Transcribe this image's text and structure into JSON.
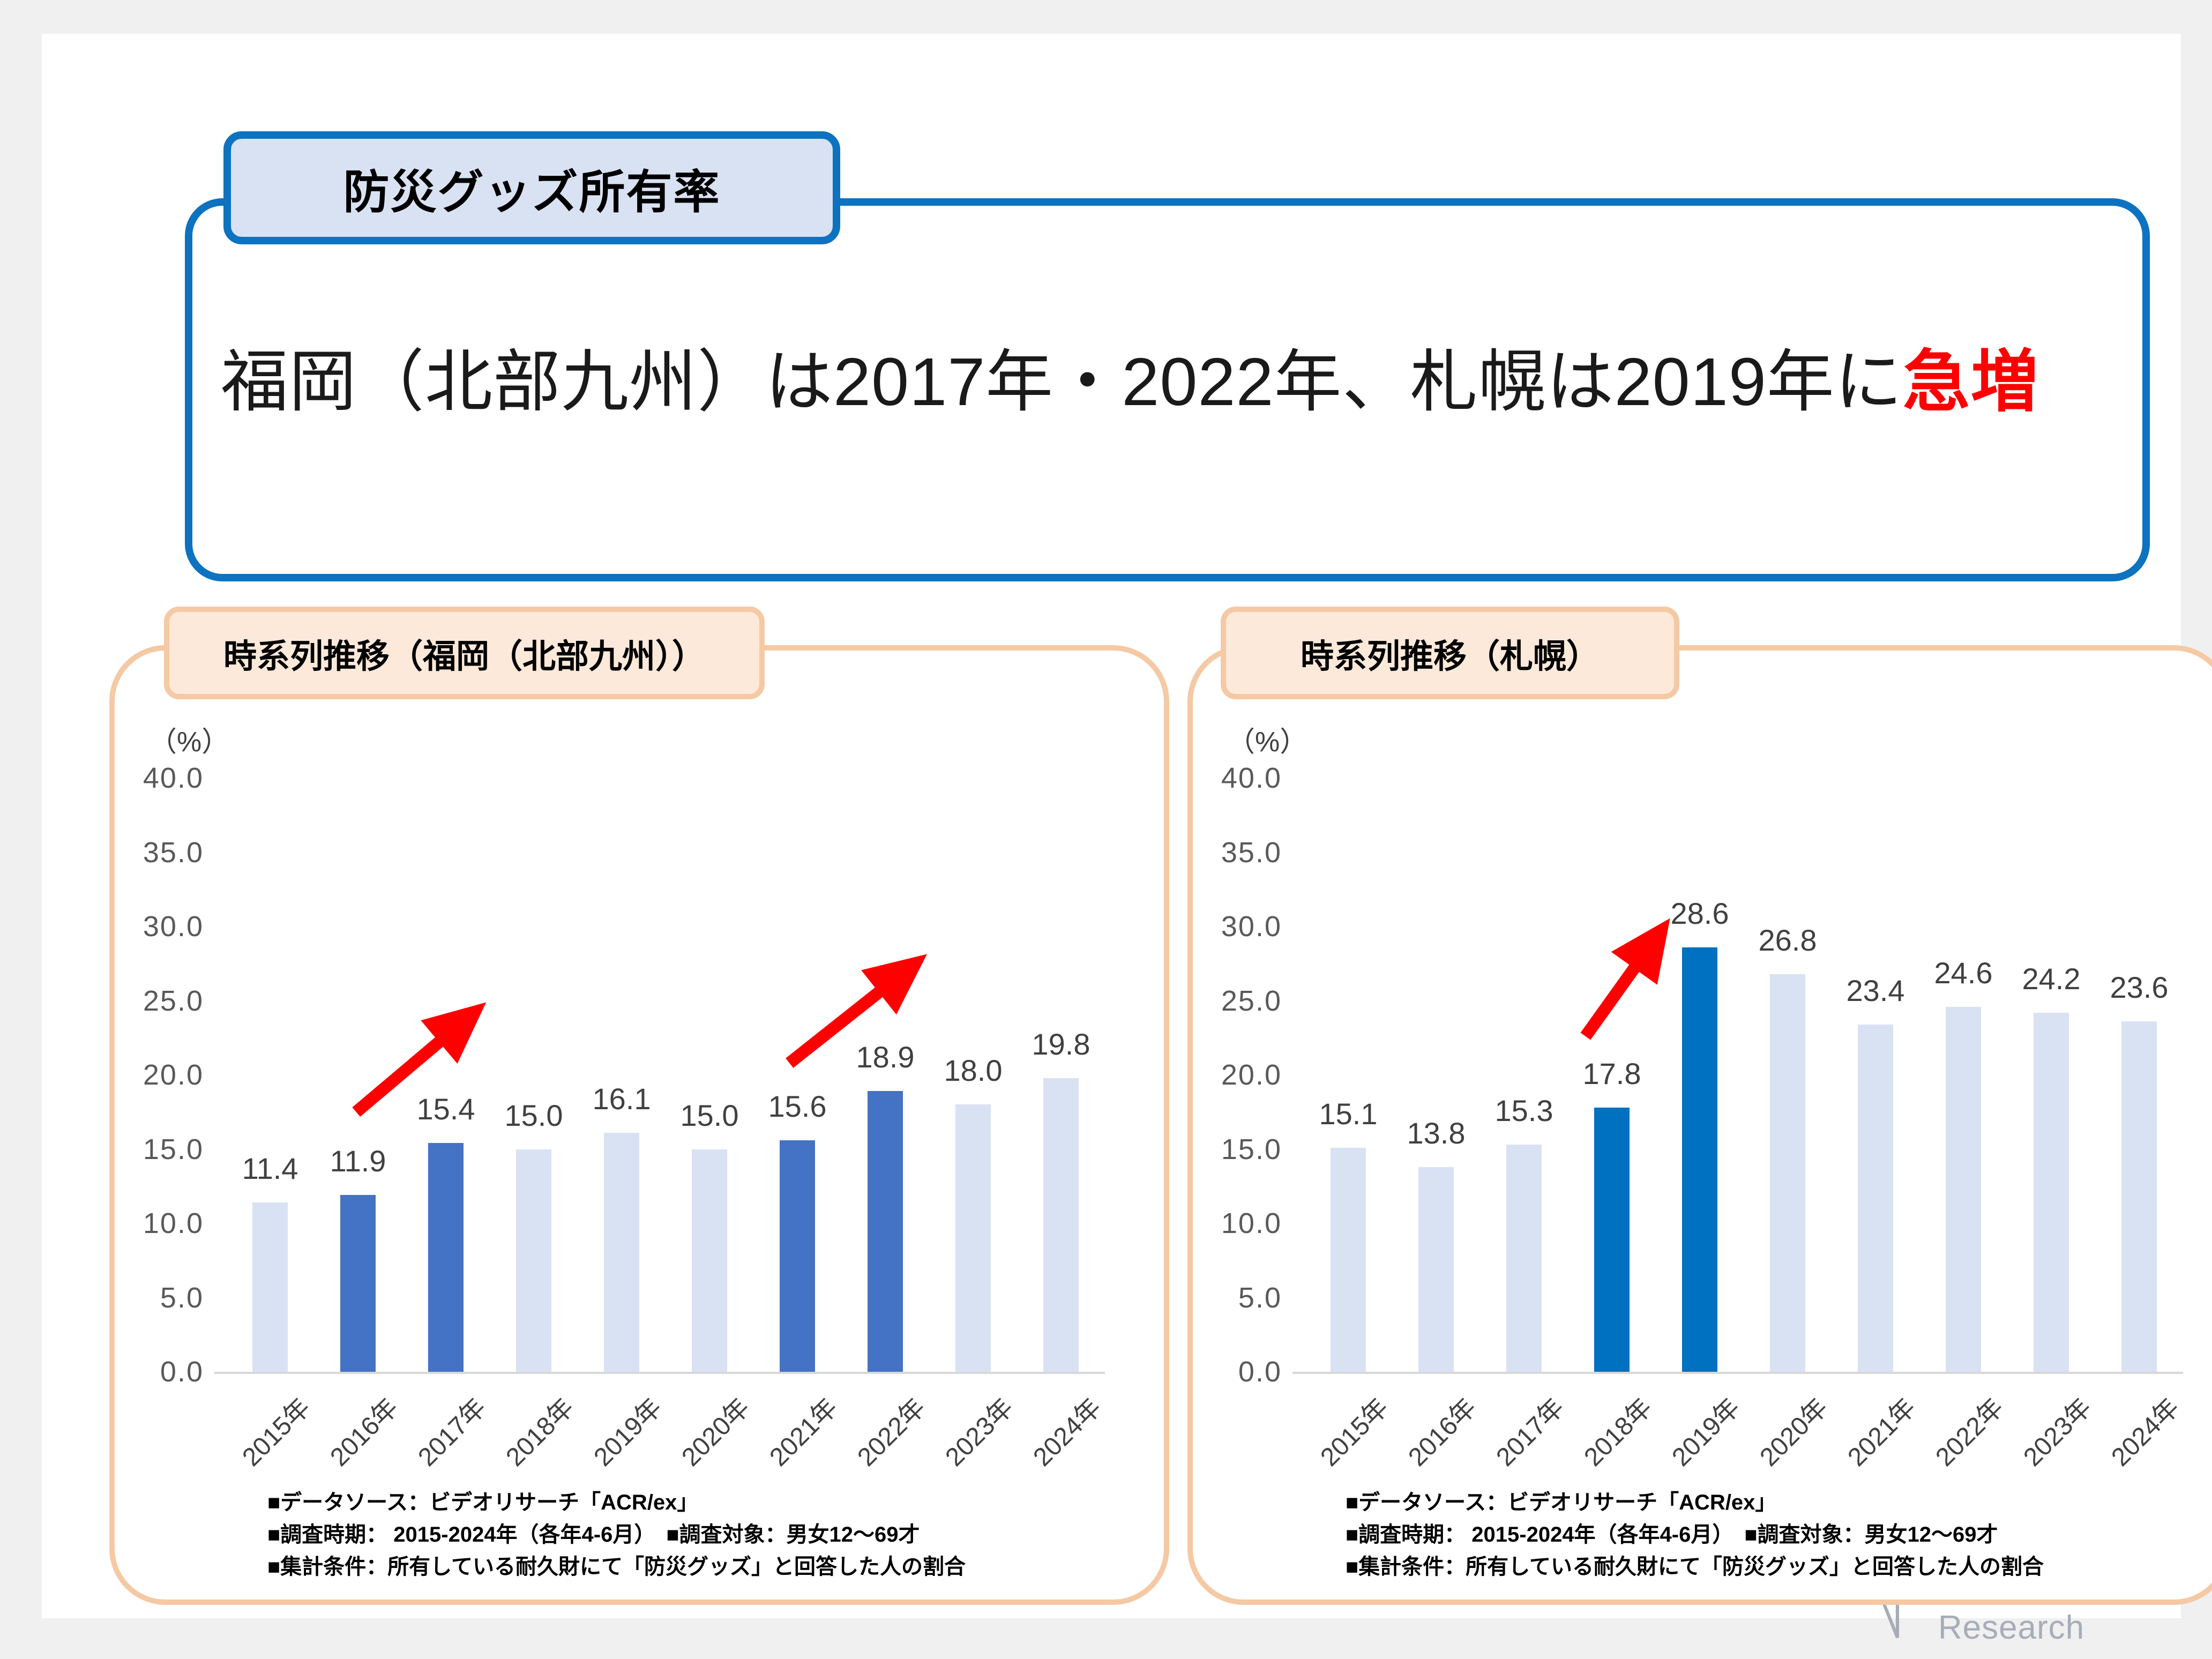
{
  "header": {
    "badge": "防災グッズ所有率",
    "headline_main": "福岡（北部九州）は2017年・2022年、札幌は2019年に",
    "headline_emphasis": "急増",
    "emphasis_color": "#FF0000",
    "border_color": "#0D72C0"
  },
  "footer": {
    "logo_text": "Video Research"
  },
  "chart_data": [
    {
      "type": "bar",
      "title": "時系列推移（福岡（北部九州））",
      "unit_label": "（%）",
      "categories": [
        "2015年",
        "2016年",
        "2017年",
        "2018年",
        "2019年",
        "2020年",
        "2021年",
        "2022年",
        "2023年",
        "2024年"
      ],
      "values": [
        11.4,
        11.9,
        15.4,
        15.0,
        16.1,
        15.0,
        15.6,
        18.9,
        18.0,
        19.8
      ],
      "highlight_indices": [
        1,
        2,
        6,
        7
      ],
      "bar_color": "#D9E2F3",
      "highlight_color": "#4472C4",
      "ylim": [
        0,
        40
      ],
      "yticks": [
        0,
        5,
        10,
        15,
        20,
        25,
        30,
        35,
        40
      ],
      "grid": false,
      "legend_position": "none",
      "arrow_color": "#FF0000",
      "arrows": [
        {
          "x1": 0.98,
          "y1": 17.5,
          "x2": 2.18,
          "y2": 23.5
        },
        {
          "x1": 5.91,
          "y1": 20.8,
          "x2": 7.19,
          "y2": 26.8
        }
      ],
      "notes": [
        "■データソース：ビデオリサーチ「ACR/ex」",
        "■調査時期： 2015-2024年（各年4-6月）　■調査対象：男女12～69才",
        "■集計条件：所有している耐久財にて「防災グッズ」と回答した人の割合"
      ]
    },
    {
      "type": "bar",
      "title": "時系列推移（札幌）",
      "unit_label": "（%）",
      "categories": [
        "2015年",
        "2016年",
        "2017年",
        "2018年",
        "2019年",
        "2020年",
        "2021年",
        "2022年",
        "2023年",
        "2024年"
      ],
      "values": [
        15.1,
        13.8,
        15.3,
        17.8,
        28.6,
        26.8,
        23.4,
        24.6,
        24.2,
        23.6
      ],
      "highlight_indices": [
        3,
        4
      ],
      "bar_color": "#D9E2F3",
      "highlight_color": "#0070C0",
      "ylim": [
        0,
        40
      ],
      "yticks": [
        0,
        5,
        10,
        15,
        20,
        25,
        30,
        35,
        40
      ],
      "grid": false,
      "legend_position": "none",
      "arrow_color": "#FF0000",
      "arrows": [
        {
          "x1": 2.7,
          "y1": 22.6,
          "x2": 3.45,
          "y2": 28.8
        }
      ],
      "notes": [
        "■データソース：ビデオリサーチ「ACR/ex」",
        "■調査時期： 2015-2024年（各年4-6月）　■調査対象：男女12～69才",
        "■集計条件：所有している耐久財にて「防災グッズ」と回答した人の割合"
      ]
    }
  ]
}
